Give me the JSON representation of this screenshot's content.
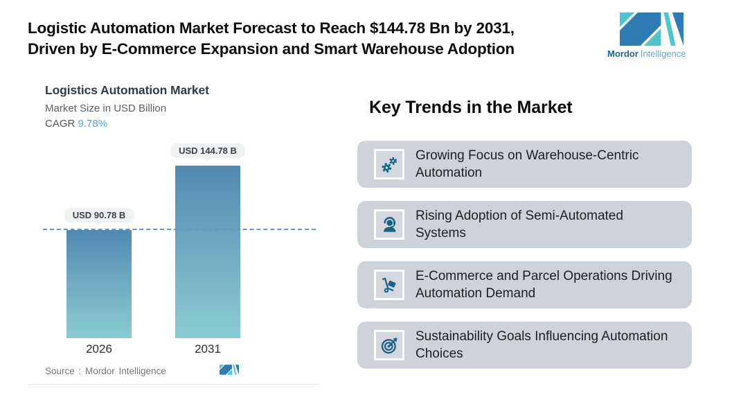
{
  "header": {
    "title_line1": "Logistic Automation Market Forecast to Reach $144.78 Bn by 2031,",
    "title_line2": "Driven by E-Commerce Expansion and Smart Warehouse Adoption",
    "logo": {
      "brand_bold": "Mordor",
      "brand_light": "Intelligence"
    }
  },
  "chart_panel": {
    "title": "Logistics Automation Market",
    "subtitle": "Market Size in USD Billion",
    "cagr_label": "CAGR",
    "cagr_value": "9.78%",
    "source_text": "Source :  Mordor Intelligence"
  },
  "chart_data": {
    "type": "bar",
    "title": "Logistics Automation Market",
    "ylabel": "Market Size in USD Billion",
    "unit": "USD Billion",
    "cagr_percent": "9.78%",
    "categories": [
      "2026",
      "2031"
    ],
    "values": [
      90.78,
      144.78
    ],
    "value_labels": [
      "USD 90.78 B",
      "USD 144.78 B"
    ],
    "reference_value": 90.78,
    "ylim": [
      0,
      160
    ],
    "grid": false,
    "legend": false
  },
  "trends": {
    "heading": "Key Trends in the Market",
    "items": [
      {
        "icon": "gears-icon",
        "text": "Growing Focus on Warehouse-Centric Automation"
      },
      {
        "icon": "support-agent-icon",
        "text": "Rising Adoption of Semi-Automated Systems"
      },
      {
        "icon": "hand-truck-icon",
        "text": "E-Commerce and Parcel Operations Driving Automation Demand"
      },
      {
        "icon": "target-arrow-icon",
        "text": "Sustainability Goals Influencing Automation Choices"
      }
    ]
  },
  "colors": {
    "logo_blue": "#2e7cb3",
    "logo_teal": "#4cc5cc",
    "logo_text_dark": "#1966a0",
    "logo_text_light": "#5fabc9",
    "cagr_accent": "#55a3d9",
    "bar_gradient_top": "#5089b1",
    "bar_gradient_bottom": "#8bccd3",
    "dashed_line": "#5e97cb",
    "value_bubble_bg": "#eef2f0",
    "trend_card_bg": "#cdd3d9",
    "trend_icon": "#1b6385"
  }
}
